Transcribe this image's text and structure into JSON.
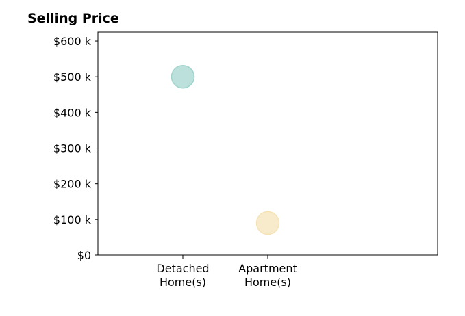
{
  "chart_data": {
    "type": "scatter",
    "title": "Selling Price",
    "xlabel": "",
    "ylabel": "",
    "categories": [
      [
        "Detached",
        "Home(s)"
      ],
      [
        "Apartment",
        "Home(s)"
      ]
    ],
    "values": [
      500000,
      90000
    ],
    "colors": [
      "#9fd3cc",
      "#f5e3b5"
    ],
    "y_ticks": [
      "$0",
      "$100 k",
      "$200 k",
      "$300 k",
      "$400 k",
      "$500 k",
      "$600 k"
    ],
    "y_tick_values": [
      0,
      100000,
      200000,
      300000,
      400000,
      500000,
      600000
    ],
    "ylim": [
      0,
      625000
    ],
    "grid": false,
    "legend": "none"
  }
}
